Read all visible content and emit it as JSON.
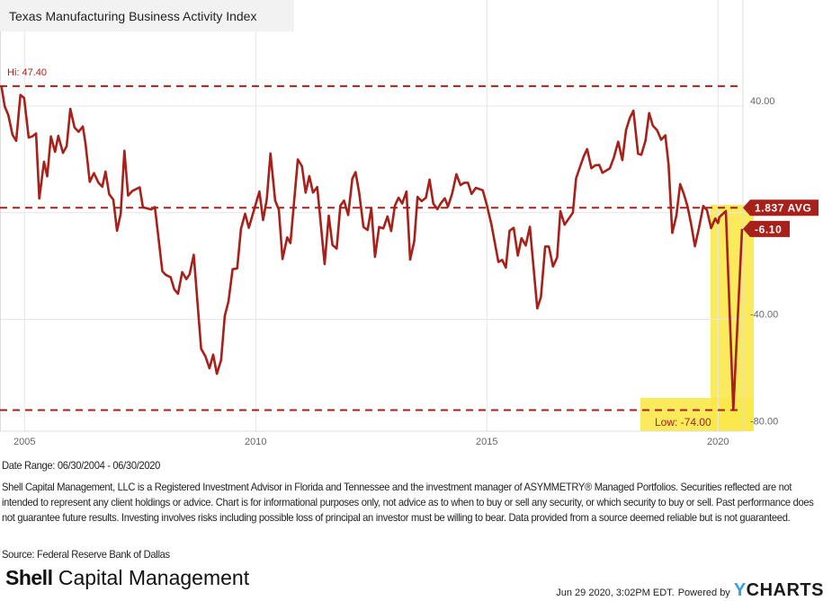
{
  "chart_data": {
    "type": "line",
    "title": "Texas Manufacturing Business Activity Index",
    "xlabel": "",
    "ylabel": "",
    "x_ticks": [
      "2005",
      "2010",
      "2015",
      "2020"
    ],
    "y_ticks": [
      "40.00",
      "-40.00",
      "-80.00"
    ],
    "y_tick_values": [
      40,
      -40,
      -80
    ],
    "x_tick_values": [
      2005,
      2010,
      2015,
      2020
    ],
    "xlim": [
      2004.5,
      2020.6
    ],
    "ylim": [
      -82,
      52
    ],
    "grid": true,
    "colors": {
      "line": "#a8201a",
      "highlight": "#fbe94a",
      "badge": "#a8201a",
      "grid": "#e6e6e6"
    },
    "hi": {
      "label": "Hi: 47.40",
      "value": 47.4
    },
    "low": {
      "label": "Low: -74.00",
      "value": -74.0
    },
    "average": {
      "label": "1.837 AVG",
      "value": 1.837
    },
    "last": {
      "label": "-6.10",
      "value": -6.1
    },
    "series": [
      {
        "name": "Texas Manufacturing Business Activity Index",
        "points": [
          [
            2004.5,
            47.4
          ],
          [
            2004.57,
            39.9
          ],
          [
            2004.65,
            36.5
          ],
          [
            2004.74,
            29.2
          ],
          [
            2004.82,
            26.9
          ],
          [
            2004.91,
            44.1
          ],
          [
            2004.99,
            43.0
          ],
          [
            2005.09,
            28.1
          ],
          [
            2005.17,
            28.6
          ],
          [
            2005.25,
            29.7
          ],
          [
            2005.32,
            5.3
          ],
          [
            2005.42,
            19.1
          ],
          [
            2005.49,
            13.6
          ],
          [
            2005.57,
            28.6
          ],
          [
            2005.66,
            22.8
          ],
          [
            2005.73,
            28.8
          ],
          [
            2005.83,
            22.4
          ],
          [
            2005.91,
            24.9
          ],
          [
            2005.99,
            38.9
          ],
          [
            2006.08,
            32.0
          ],
          [
            2006.17,
            30.3
          ],
          [
            2006.26,
            32.3
          ],
          [
            2006.32,
            25.8
          ],
          [
            2006.41,
            11.5
          ],
          [
            2006.5,
            14.8
          ],
          [
            2006.6,
            11.2
          ],
          [
            2006.68,
            9.7
          ],
          [
            2006.75,
            15.4
          ],
          [
            2006.83,
            6.9
          ],
          [
            2006.92,
            4.8
          ],
          [
            2007.0,
            -6.8
          ],
          [
            2007.08,
            -0.4
          ],
          [
            2007.16,
            23.2
          ],
          [
            2007.24,
            6.4
          ],
          [
            2007.33,
            8.1
          ],
          [
            2007.49,
            9.5
          ],
          [
            2007.56,
            2.0
          ],
          [
            2007.74,
            1.2
          ],
          [
            2007.82,
            2.1
          ],
          [
            2007.98,
            -22.0
          ],
          [
            2008.06,
            -23.4
          ],
          [
            2008.16,
            -24.2
          ],
          [
            2008.24,
            -28.8
          ],
          [
            2008.32,
            -30.4
          ],
          [
            2008.41,
            -22.3
          ],
          [
            2008.5,
            -24.9
          ],
          [
            2008.57,
            -23.1
          ],
          [
            2008.66,
            -15.8
          ],
          [
            2008.82,
            -51.0
          ],
          [
            2008.91,
            -53.8
          ],
          [
            2009.0,
            -58.3
          ],
          [
            2009.08,
            -53.2
          ],
          [
            2009.16,
            -60.4
          ],
          [
            2009.25,
            -55.3
          ],
          [
            2009.33,
            -38.7
          ],
          [
            2009.41,
            -33.3
          ],
          [
            2009.5,
            -21.2
          ],
          [
            2009.6,
            -20.9
          ],
          [
            2009.68,
            -6.1
          ],
          [
            2009.77,
            -0.4
          ],
          [
            2009.85,
            -5.7
          ],
          [
            2009.95,
            0.2
          ],
          [
            2010.08,
            7.9
          ],
          [
            2010.16,
            -2.8
          ],
          [
            2010.24,
            5.0
          ],
          [
            2010.32,
            22.2
          ],
          [
            2010.42,
            4.5
          ],
          [
            2010.5,
            1.1
          ],
          [
            2010.58,
            -17.4
          ],
          [
            2010.68,
            -9.3
          ],
          [
            2010.75,
            -11.4
          ],
          [
            2010.91,
            19.9
          ],
          [
            2011.0,
            17.4
          ],
          [
            2011.08,
            7.5
          ],
          [
            2011.16,
            13.7
          ],
          [
            2011.24,
            7.5
          ],
          [
            2011.33,
            9.6
          ],
          [
            2011.49,
            -19.3
          ],
          [
            2011.58,
            -1.1
          ],
          [
            2011.66,
            -12.1
          ],
          [
            2011.75,
            -13.5
          ],
          [
            2011.83,
            2.6
          ],
          [
            2011.91,
            4.5
          ],
          [
            2012.0,
            -0.9
          ],
          [
            2012.09,
            12.7
          ],
          [
            2012.16,
            15.2
          ],
          [
            2012.24,
            7.3
          ],
          [
            2012.33,
            -5.4
          ],
          [
            2012.42,
            -6.5
          ],
          [
            2012.5,
            1.7
          ],
          [
            2012.58,
            -16.6
          ],
          [
            2012.67,
            -5.4
          ],
          [
            2012.76,
            -5.9
          ],
          [
            2012.85,
            -1.4
          ],
          [
            2012.93,
            -6.9
          ],
          [
            2013.01,
            2.6
          ],
          [
            2013.09,
            5.6
          ],
          [
            2013.17,
            3.4
          ],
          [
            2013.26,
            7.9
          ],
          [
            2013.34,
            -17.6
          ],
          [
            2013.43,
            -10.6
          ],
          [
            2013.5,
            5.9
          ],
          [
            2013.59,
            4.3
          ],
          [
            2013.68,
            5.6
          ],
          [
            2013.76,
            12.4
          ],
          [
            2013.84,
            3.4
          ],
          [
            2013.93,
            1.3
          ],
          [
            2014.0,
            3.4
          ],
          [
            2014.09,
            5.4
          ],
          [
            2014.16,
            2.3
          ],
          [
            2014.25,
            7.3
          ],
          [
            2014.34,
            14.4
          ],
          [
            2014.43,
            10.3
          ],
          [
            2014.51,
            11.2
          ],
          [
            2014.59,
            11.2
          ],
          [
            2014.67,
            7.0
          ],
          [
            2014.76,
            9.3
          ],
          [
            2014.91,
            8.4
          ],
          [
            2015.0,
            2.8
          ],
          [
            2015.1,
            -4.5
          ],
          [
            2015.25,
            -18.5
          ],
          [
            2015.33,
            -17.7
          ],
          [
            2015.41,
            -20.6
          ],
          [
            2015.49,
            -6.8
          ],
          [
            2015.58,
            -5.7
          ],
          [
            2015.67,
            -16.1
          ],
          [
            2015.75,
            -9.6
          ],
          [
            2015.84,
            -12.3
          ],
          [
            2015.93,
            -5.3
          ],
          [
            2016.09,
            -35.9
          ],
          [
            2016.17,
            -31.6
          ],
          [
            2016.26,
            -12.7
          ],
          [
            2016.34,
            -12.7
          ],
          [
            2016.43,
            -20.2
          ],
          [
            2016.52,
            -16.8
          ],
          [
            2016.59,
            0.6
          ],
          [
            2016.68,
            -4.5
          ],
          [
            2016.86,
            0.0
          ],
          [
            2016.93,
            12.9
          ],
          [
            2017.02,
            17.4
          ],
          [
            2017.1,
            21.3
          ],
          [
            2017.17,
            23.8
          ],
          [
            2017.26,
            16.6
          ],
          [
            2017.34,
            17.7
          ],
          [
            2017.43,
            17.9
          ],
          [
            2017.5,
            14.9
          ],
          [
            2017.66,
            16.6
          ],
          [
            2017.75,
            20.8
          ],
          [
            2017.84,
            26.6
          ],
          [
            2017.93,
            19.7
          ],
          [
            2018.01,
            30.9
          ],
          [
            2018.09,
            35.4
          ],
          [
            2018.17,
            38.2
          ],
          [
            2018.27,
            22.1
          ],
          [
            2018.34,
            21.7
          ],
          [
            2018.43,
            26.9
          ],
          [
            2018.51,
            37.3
          ],
          [
            2018.59,
            32.6
          ],
          [
            2018.68,
            30.9
          ],
          [
            2018.77,
            27.3
          ],
          [
            2018.86,
            29.0
          ],
          [
            2018.93,
            18.0
          ],
          [
            2019.01,
            -7.6
          ],
          [
            2019.1,
            -1.1
          ],
          [
            2019.18,
            10.7
          ],
          [
            2019.26,
            7.0
          ],
          [
            2019.34,
            2.3
          ],
          [
            2019.42,
            -4.5
          ],
          [
            2019.5,
            -12.6
          ],
          [
            2019.59,
            -5.6
          ],
          [
            2019.68,
            2.5
          ],
          [
            2019.76,
            0.9
          ],
          [
            2019.85,
            -5.8
          ],
          [
            2019.94,
            -2.2
          ],
          [
            2020.0,
            -3.9
          ],
          [
            2020.03,
            -1.7
          ],
          [
            2020.17,
            0.6
          ],
          [
            2020.33,
            -74.0
          ],
          [
            2020.52,
            -6.1
          ]
        ]
      }
    ]
  },
  "footer": {
    "date_range": "Date Range: 06/30/2004 - 06/30/2020",
    "disclaimer": "Shell Capital Management, LLC is a Registered Investment Advisor in Florida and Tennessee and the investment manager of ASYMMETRY® Managed Portfolios. Securities reflected are not intended to represent any client holdings or advice. Chart is for informational purposes only, not advice as to when to buy or sell any security, or which security to buy or sell. Past performance does not guarantee future results. Investing involves risks including possible loss of principal an investor must be willing to bear. Data provided from a source deemed reliable but is not guaranteed.",
    "source": "Source: Federal Reserve Bank of Dallas",
    "logo_bold": "Shell",
    "logo_rest": "Capital Management",
    "timestamp": "Jun 29 2020, 3:02PM EDT.",
    "powered_by": "Powered by",
    "ycharts_y": "Y",
    "ycharts_rest": "CHARTS"
  }
}
